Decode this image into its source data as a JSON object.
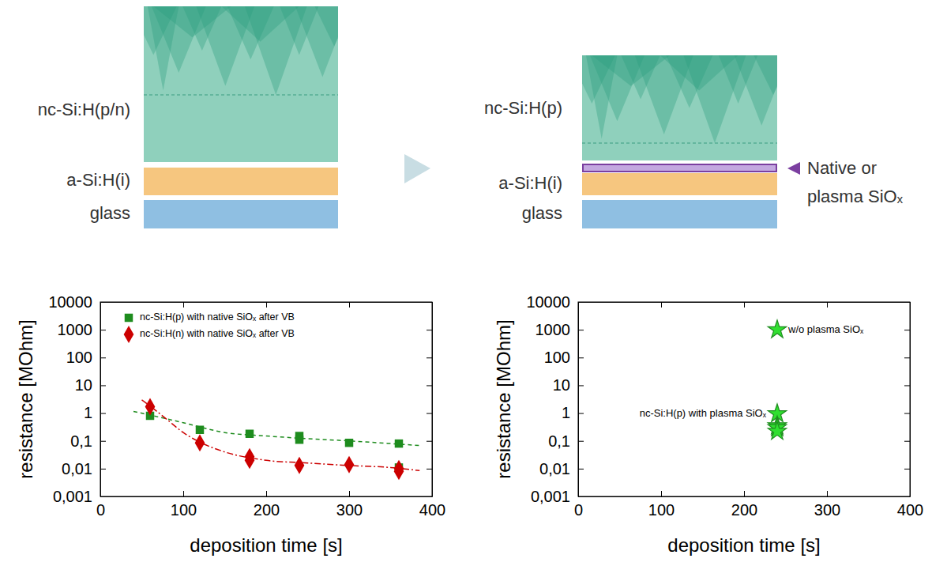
{
  "diagrams": [
    {
      "layers": [
        "nc-Si:H(p/n)",
        "a-Si:H(i)",
        "glass"
      ]
    },
    {
      "layers": [
        "nc-Si:H(p)",
        "a-Si:H(i)",
        "glass"
      ],
      "interlayer": [
        "Native or",
        "plasma SiOₓ"
      ]
    }
  ],
  "chart_data": [
    {
      "type": "scatter",
      "xlabel": "deposition time [s]",
      "ylabel": "resistance [MOhm]",
      "xlim": [
        0,
        400
      ],
      "ylim": [
        0.001,
        10000
      ],
      "log": "y",
      "xticks": [
        0,
        100,
        200,
        300,
        400
      ],
      "yticks": [
        {
          "value": 0.001,
          "label": "0,001"
        },
        {
          "value": 0.01,
          "label": "0,01"
        },
        {
          "value": 0.1,
          "label": "0,1"
        },
        1,
        10,
        100,
        1000,
        10000
      ],
      "legend": "top-left",
      "series": [
        {
          "name": "nc-Si:H(p) with native SiOₓ after VB",
          "color": "#1e8c1e",
          "marker": "square",
          "x": [
            60,
            120,
            180,
            240,
            240,
            300,
            360,
            360
          ],
          "values": [
            0.8,
            0.25,
            0.18,
            0.15,
            0.11,
            0.085,
            0.08,
            0.011
          ]
        },
        {
          "name": "nc-Si:H(n) with native SiOₓ after VB",
          "color": "#cc0000",
          "marker": "diamond",
          "x": [
            60,
            120,
            180,
            180,
            240,
            300,
            360,
            360
          ],
          "values": [
            1.7,
            0.085,
            0.027,
            0.02,
            0.013,
            0.014,
            0.01,
            0.008
          ]
        },
        {
          "type": "line",
          "color": "#1e8c1e",
          "line_style": "dashed",
          "x": [
            40,
            60,
            100,
            150,
            200,
            250,
            300,
            350,
            385
          ],
          "values": [
            1.15,
            0.85,
            0.45,
            0.2,
            0.15,
            0.12,
            0.1,
            0.08,
            0.068
          ]
        },
        {
          "type": "line",
          "color": "#cc0000",
          "line_style": "dashdot",
          "x": [
            50,
            60,
            80,
            100,
            120,
            150,
            200,
            250,
            300,
            350,
            385
          ],
          "values": [
            3,
            1.8,
            0.6,
            0.2,
            0.09,
            0.04,
            0.02,
            0.016,
            0.013,
            0.011,
            0.0085
          ]
        }
      ]
    },
    {
      "type": "scatter",
      "xlabel": "deposition time [s]",
      "ylabel": "resistance [MOhm]",
      "xlim": [
        0,
        400
      ],
      "ylim": [
        0.001,
        10000
      ],
      "log": "y",
      "xticks": [
        0,
        100,
        200,
        300,
        400
      ],
      "yticks": [
        {
          "value": 0.001,
          "label": "0,001"
        },
        {
          "value": 0.01,
          "label": "0,01"
        },
        {
          "value": 0.1,
          "label": "0,1"
        },
        1,
        10,
        100,
        1000,
        10000
      ],
      "legend": "none",
      "series": [
        {
          "name": "w/o plasma SiOₓ",
          "color": "#1e8c1e",
          "marker": "star",
          "x": [
            240
          ],
          "values": [
            1000
          ]
        },
        {
          "name": "nc-Si:H(p) with plasma SiOₓ",
          "color": "#1e8c1e",
          "marker": "star",
          "x": [
            240,
            240,
            240,
            240
          ],
          "values": [
            0.95,
            0.35,
            0.3,
            0.22
          ]
        }
      ]
    }
  ]
}
